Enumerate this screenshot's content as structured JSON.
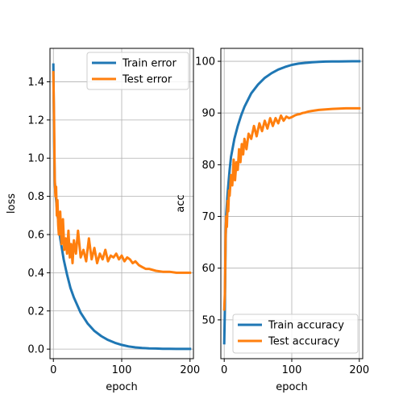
{
  "colors": {
    "train": "#1f77b4",
    "test": "#ff7f0e",
    "grid": "#b0b0b0"
  },
  "chart_data": [
    {
      "type": "line",
      "title": "",
      "xlabel": "epoch",
      "ylabel": "loss",
      "xlim": [
        -5,
        205
      ],
      "ylim": [
        -0.05,
        1.575
      ],
      "xticks": [
        0,
        100,
        200
      ],
      "xtick_labels": [
        "0",
        "100",
        "200"
      ],
      "yticks": [
        0.0,
        0.2,
        0.4,
        0.6,
        0.8,
        1.0,
        1.2,
        1.4
      ],
      "ytick_labels": [
        "0.0",
        "0.2",
        "0.4",
        "0.6",
        "0.8",
        "1.0",
        "1.2",
        "1.4"
      ],
      "grid": true,
      "legend": "top-right",
      "series": [
        {
          "name": "Train error",
          "color": "#1f77b4",
          "x": [
            0,
            1,
            2,
            3,
            5,
            8,
            10,
            15,
            20,
            25,
            30,
            40,
            50,
            60,
            70,
            80,
            90,
            100,
            110,
            120,
            130,
            140,
            150,
            160,
            170,
            180,
            190,
            200
          ],
          "y": [
            1.49,
            1.1,
            0.88,
            0.82,
            0.74,
            0.64,
            0.58,
            0.47,
            0.39,
            0.32,
            0.27,
            0.19,
            0.135,
            0.095,
            0.068,
            0.048,
            0.033,
            0.022,
            0.014,
            0.009,
            0.006,
            0.004,
            0.003,
            0.002,
            0.002,
            0.001,
            0.001,
            0.001
          ]
        },
        {
          "name": "Test error",
          "color": "#ff7f0e",
          "x": [
            0,
            1,
            2,
            3,
            4,
            5,
            6,
            7,
            8,
            10,
            12,
            14,
            16,
            18,
            20,
            22,
            24,
            26,
            28,
            30,
            33,
            36,
            40,
            44,
            48,
            52,
            56,
            60,
            64,
            68,
            72,
            76,
            80,
            84,
            88,
            92,
            96,
            100,
            104,
            108,
            112,
            116,
            120,
            125,
            130,
            135,
            140,
            150,
            160,
            170,
            180,
            190,
            200
          ],
          "y": [
            1.45,
            1.2,
            0.9,
            0.8,
            0.85,
            0.7,
            0.78,
            0.65,
            0.6,
            0.72,
            0.55,
            0.68,
            0.52,
            0.58,
            0.5,
            0.62,
            0.48,
            0.55,
            0.45,
            0.57,
            0.5,
            0.62,
            0.48,
            0.52,
            0.46,
            0.58,
            0.47,
            0.53,
            0.45,
            0.5,
            0.47,
            0.52,
            0.46,
            0.49,
            0.48,
            0.5,
            0.47,
            0.49,
            0.46,
            0.48,
            0.47,
            0.45,
            0.46,
            0.44,
            0.43,
            0.42,
            0.42,
            0.41,
            0.405,
            0.405,
            0.4,
            0.4,
            0.4
          ]
        }
      ]
    },
    {
      "type": "line",
      "title": "",
      "xlabel": "epoch",
      "ylabel": "acc",
      "xlim": [
        -5,
        205
      ],
      "ylim": [
        42.5,
        102.5
      ],
      "xticks": [
        0,
        100,
        200
      ],
      "xtick_labels": [
        "0",
        "100",
        "200"
      ],
      "yticks": [
        50,
        60,
        70,
        80,
        90,
        100
      ],
      "ytick_labels": [
        "50",
        "60",
        "70",
        "80",
        "90",
        "100"
      ],
      "grid": true,
      "legend": "bottom-right",
      "series": [
        {
          "name": "Train accuracy",
          "color": "#1f77b4",
          "x": [
            0,
            1,
            2,
            3,
            5,
            8,
            10,
            15,
            20,
            25,
            30,
            40,
            50,
            60,
            70,
            80,
            90,
            100,
            110,
            120,
            130,
            140,
            150,
            160,
            170,
            180,
            190,
            200
          ],
          "y": [
            45.5,
            52.0,
            65.0,
            70.5,
            74.5,
            79.0,
            81.5,
            85.0,
            87.5,
            89.5,
            91.2,
            93.8,
            95.5,
            96.8,
            97.7,
            98.4,
            98.9,
            99.3,
            99.55,
            99.7,
            99.8,
            99.9,
            99.95,
            99.97,
            99.98,
            99.99,
            100.0,
            100.0
          ]
        },
        {
          "name": "Test accuracy",
          "color": "#ff7f0e",
          "x": [
            0,
            1,
            2,
            3,
            4,
            5,
            6,
            7,
            8,
            10,
            12,
            14,
            16,
            18,
            20,
            22,
            24,
            26,
            28,
            30,
            33,
            36,
            40,
            44,
            48,
            52,
            56,
            60,
            64,
            68,
            72,
            76,
            80,
            84,
            88,
            92,
            96,
            100,
            104,
            108,
            112,
            116,
            120,
            125,
            130,
            135,
            140,
            150,
            160,
            170,
            180,
            190,
            200
          ],
          "y": [
            52.0,
            55.0,
            66.0,
            70.0,
            68.0,
            73.0,
            71.0,
            75.0,
            74.0,
            78.0,
            76.0,
            81.0,
            77.0,
            80.5,
            79.0,
            83.0,
            80.5,
            84.0,
            82.0,
            85.0,
            83.0,
            86.0,
            85.0,
            87.5,
            85.5,
            88.0,
            86.5,
            88.5,
            87.0,
            89.0,
            87.5,
            89.0,
            88.0,
            89.5,
            88.5,
            89.3,
            89.0,
            89.2,
            89.5,
            89.7,
            89.8,
            90.0,
            90.1,
            90.3,
            90.4,
            90.5,
            90.6,
            90.7,
            90.8,
            90.85,
            90.9,
            90.9,
            90.9
          ]
        }
      ]
    }
  ]
}
